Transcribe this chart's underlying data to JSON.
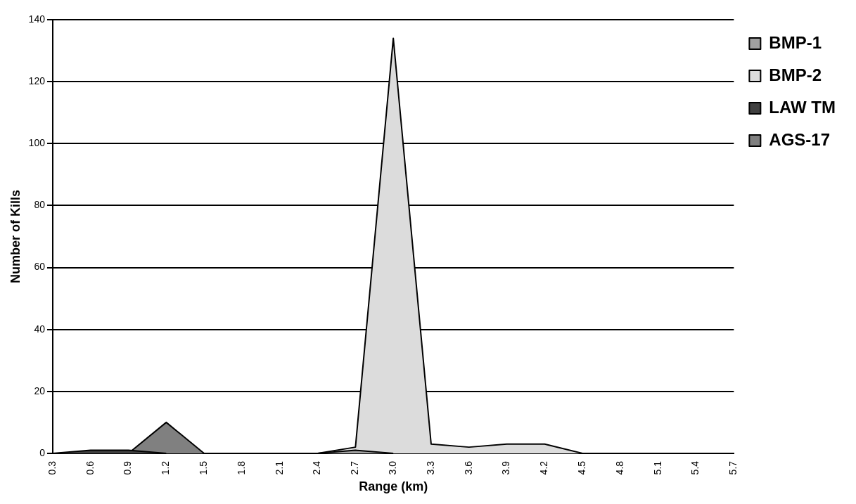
{
  "chart_data": {
    "type": "area",
    "xlabel": "Range (km)",
    "ylabel": "Number of Kills",
    "categories": [
      "0.3",
      "0.6",
      "0.9",
      "1.2",
      "1.5",
      "1.8",
      "2.1",
      "2.4",
      "2.7",
      "3.0",
      "3.3",
      "3.6",
      "3.9",
      "4.2",
      "4.5",
      "4.8",
      "5.1",
      "5.4",
      "5.7"
    ],
    "series": [
      {
        "name": "BMP-1",
        "color": "#a0a0a0",
        "values": [
          null,
          null,
          null,
          null,
          null,
          null,
          null,
          0,
          1,
          0,
          null,
          null,
          null,
          null,
          null,
          null,
          null,
          null,
          null
        ]
      },
      {
        "name": "BMP-2",
        "color": "#dcdcdc",
        "values": [
          null,
          null,
          null,
          null,
          null,
          null,
          null,
          0,
          2,
          134,
          3,
          2,
          3,
          3,
          0,
          null,
          null,
          null,
          null
        ]
      },
      {
        "name": "LAW TM",
        "color": "#404040",
        "values": [
          0,
          1,
          1,
          0,
          null,
          null,
          null,
          null,
          null,
          null,
          null,
          null,
          null,
          null,
          null,
          null,
          null,
          null,
          null
        ]
      },
      {
        "name": "AGS-17",
        "color": "#808080",
        "values": [
          null,
          null,
          0,
          10,
          0,
          null,
          null,
          null,
          null,
          null,
          null,
          null,
          null,
          null,
          null,
          null,
          null,
          null,
          null
        ]
      }
    ],
    "ylim": [
      0,
      140
    ],
    "yticks": [
      0,
      20,
      40,
      60,
      80,
      100,
      120,
      140
    ],
    "grid": "y",
    "legend": "top right"
  }
}
